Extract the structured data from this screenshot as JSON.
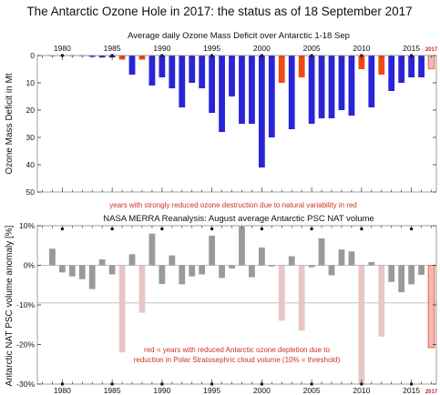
{
  "title": "The Antarctic Ozone Hole in 2017: the status as of 18 September 2017",
  "colors": {
    "blue": "#2a24d8",
    "orange": "#f04a14",
    "pink_current": "#f0b8b8",
    "gray": "#9a9a9a",
    "pink": "#e8c6c6",
    "red_text": "#cc3322",
    "threshold_line": "#bbbbbb"
  },
  "chart_data": [
    {
      "type": "bar",
      "title": "Average daily Ozone Mass Deficit over Antarctic 1-18 Sep",
      "ylabel": "Ozone Mass Deficit in Mt",
      "ylim": [
        50,
        0
      ],
      "y_ticks": [
        "0",
        "10",
        "20",
        "30",
        "40",
        "50"
      ],
      "x_ticks": [
        "1980",
        "1985",
        "1990",
        "1995",
        "2000",
        "2005",
        "2010",
        "2015"
      ],
      "highlight_tick": "2017",
      "xlim": [
        1977.5,
        2017.5
      ],
      "note": "years with strongly reduced ozone destruction due to natural variability in red",
      "x": [
        1979,
        1980,
        1981,
        1982,
        1983,
        1984,
        1985,
        1986,
        1987,
        1988,
        1989,
        1990,
        1991,
        1992,
        1993,
        1994,
        1995,
        1996,
        1997,
        1998,
        1999,
        2000,
        2001,
        2002,
        2003,
        2004,
        2005,
        2006,
        2007,
        2008,
        2009,
        2010,
        2011,
        2012,
        2013,
        2014,
        2015,
        2016,
        2017
      ],
      "values": [
        0.1,
        0.1,
        0.2,
        0.2,
        0.5,
        0.7,
        0.7,
        1.5,
        7.0,
        1.5,
        11.0,
        8.0,
        12.0,
        19.0,
        10.0,
        12.0,
        21.0,
        28.0,
        15.0,
        25.0,
        25.0,
        41.0,
        30.0,
        10.0,
        27.0,
        8.0,
        25.0,
        23.0,
        23.0,
        20.0,
        22.0,
        5.0,
        19.0,
        7.0,
        13.0,
        10.0,
        8.0,
        8.0,
        4.8
      ],
      "category": [
        "b",
        "b",
        "b",
        "b",
        "b",
        "b",
        "b",
        "r",
        "b",
        "r",
        "b",
        "b",
        "b",
        "b",
        "b",
        "b",
        "b",
        "b",
        "b",
        "b",
        "b",
        "b",
        "b",
        "r",
        "b",
        "r",
        "b",
        "b",
        "b",
        "b",
        "b",
        "r",
        "b",
        "r",
        "b",
        "b",
        "b",
        "b",
        "c"
      ]
    },
    {
      "type": "bar",
      "title": "NASA MERRA Reanalysis: August average Antarctic PSC NAT volume",
      "ylabel": "Antarctic NAT PSC volume anomaly [%]",
      "ylim": [
        -30,
        10
      ],
      "y_ticks": [
        "10%",
        "0%",
        "-10%",
        "-20%",
        "-30%"
      ],
      "x_ticks": [
        "1980",
        "1985",
        "1990",
        "1995",
        "2000",
        "2005",
        "2010",
        "2015"
      ],
      "highlight_tick": "2017",
      "xlim": [
        1977.5,
        2017.5
      ],
      "threshold": -9.5,
      "note_lines": [
        "red = years with reduced Antarctic ozone depletion due to",
        "reduction in Polar Stratosephric cloud volume (10% = threshold)"
      ],
      "x": [
        1979,
        1980,
        1981,
        1982,
        1983,
        1984,
        1985,
        1986,
        1987,
        1988,
        1989,
        1990,
        1991,
        1992,
        1993,
        1994,
        1995,
        1996,
        1997,
        1998,
        1999,
        2000,
        2001,
        2002,
        2003,
        2004,
        2005,
        2006,
        2007,
        2008,
        2009,
        2010,
        2011,
        2012,
        2013,
        2014,
        2015,
        2016,
        2017
      ],
      "values": [
        4.2,
        -1.8,
        -2.8,
        -3.5,
        -6.0,
        1.5,
        -2.3,
        -22.0,
        2.8,
        -12.0,
        8.0,
        -4.7,
        2.5,
        -4.8,
        -2.8,
        -2.3,
        7.5,
        -3.2,
        -0.8,
        9.8,
        -3.0,
        4.5,
        -0.3,
        -14.0,
        2.3,
        -16.5,
        -0.5,
        6.8,
        -2.5,
        4.0,
        3.5,
        -30.0,
        0.8,
        -18.0,
        -4.2,
        -6.8,
        -4.8,
        -2.4,
        -20.8
      ],
      "category": [
        "g",
        "g",
        "g",
        "g",
        "g",
        "g",
        "g",
        "p",
        "g",
        "p",
        "g",
        "g",
        "g",
        "g",
        "g",
        "g",
        "g",
        "g",
        "g",
        "g",
        "g",
        "g",
        "g",
        "p",
        "g",
        "p",
        "g",
        "g",
        "g",
        "g",
        "g",
        "p",
        "g",
        "p",
        "g",
        "g",
        "g",
        "g",
        "c"
      ]
    }
  ]
}
